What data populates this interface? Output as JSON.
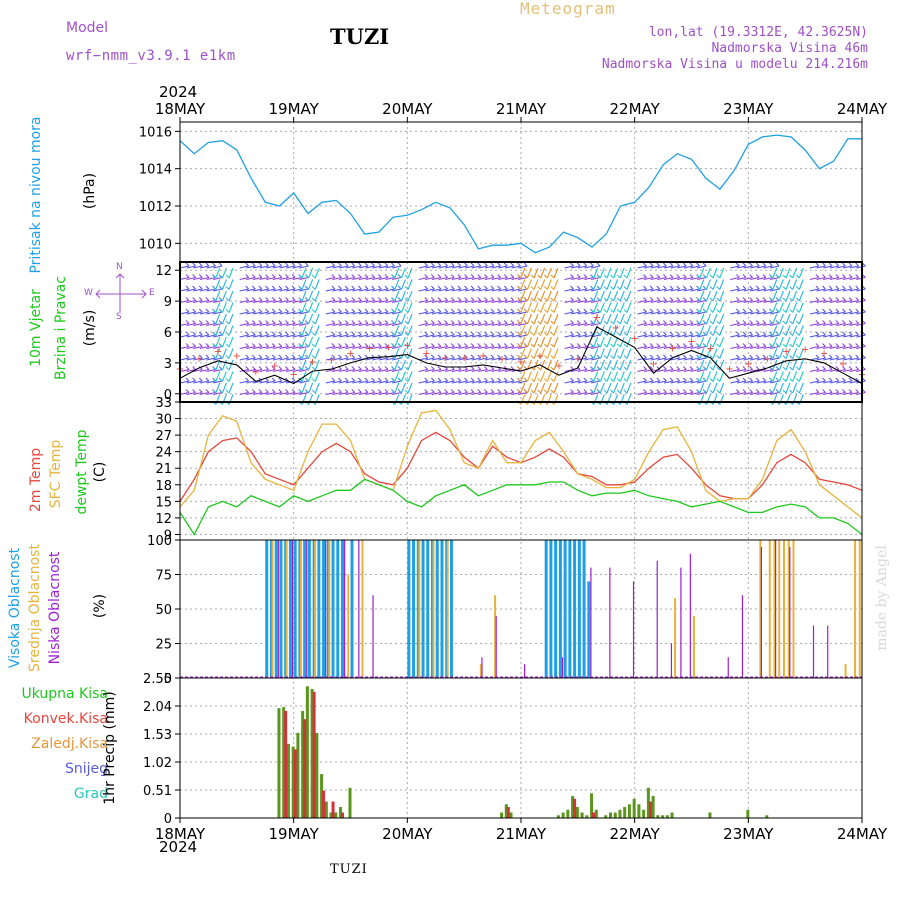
{
  "header": {
    "model_label": "Model",
    "model_name": "wrf−nmm_v3.9.1  e1km",
    "station": "TUZI",
    "title": "Meteogram",
    "lonlat": "lon,lat (19.3312E, 42.3625N)",
    "elevation": "Nadmorska Visina 46m",
    "model_elevation": "Nadmorska Visina u modelu 214.216m",
    "footer_station": "TUZI",
    "watermark": "made by Angel"
  },
  "time_axis": {
    "year": "2024",
    "ticks": [
      "18MAY",
      "19MAY",
      "20MAY",
      "21MAY",
      "22MAY",
      "23MAY",
      "24MAY"
    ],
    "range_hours": [
      0,
      144
    ]
  },
  "panel_labels": {
    "pressure": {
      "name": "Pritisak na nivou mora",
      "unit": "(hPa)"
    },
    "wind": {
      "name1": "10m Vjetar",
      "name2": "Brzina i Pravac",
      "unit": "(m/s)",
      "compass_n": "N",
      "compass_s": "S",
      "compass_w": "W",
      "compass_e": "E"
    },
    "temp": {
      "t2m": "2m Temp",
      "sfc": "SFC Temp",
      "dew": "dewpt Temp",
      "unit": "(C)"
    },
    "cloud": {
      "high": "Visoka Oblacnost",
      "mid": "Srednja Oblacnost",
      "low": "Niska Oblacnost",
      "unit": "(%)"
    },
    "precip": {
      "total": "Ukupna Kisa",
      "conv": "Konvek.Kisa",
      "frozen": "Zaledj.Kisa",
      "snow": "Snijeg",
      "hail": "Grad",
      "unit": "1hr Precip (mm)"
    }
  },
  "colors": {
    "pressure": "#1ea0e6",
    "t2m": "#e6463c",
    "sfc": "#e6b43c",
    "dew": "#1ec81e",
    "high": "#1ea0e6",
    "mid": "#e6b43c",
    "low": "#a01ed2",
    "precip_total": "#5a961e",
    "precip_conv": "#d2323c",
    "label_green": "#1ec81e",
    "label_red": "#e6463c",
    "label_orange": "#e6963c",
    "label_blue": "#5a5adc",
    "label_cyan": "#28c8b4",
    "purple": "#a050c8",
    "gold": "#e6be78"
  },
  "chart_data": [
    {
      "type": "line",
      "name": "pressure",
      "ylim": [
        1009,
        1016.5
      ],
      "yticks": [
        "1010",
        "1012",
        "1014",
        "1016"
      ],
      "x": [
        0,
        3,
        6,
        9,
        12,
        15,
        18,
        21,
        24,
        27,
        30,
        33,
        36,
        39,
        42,
        45,
        48,
        51,
        54,
        57,
        60,
        63,
        66,
        69,
        72,
        75,
        78,
        81,
        84,
        87,
        90,
        93,
        96,
        99,
        102,
        105,
        108,
        111,
        114,
        117,
        120,
        123,
        126,
        129,
        132,
        135,
        138,
        141,
        144
      ],
      "series": [
        {
          "values": [
            1015.5,
            1014.8,
            1015.4,
            1015.5,
            1015.0,
            1013.5,
            1012.2,
            1012.0,
            1012.7,
            1011.6,
            1012.2,
            1012.3,
            1011.6,
            1010.5,
            1010.6,
            1011.4,
            1011.5,
            1011.8,
            1012.2,
            1011.9,
            1011.0,
            1009.7,
            1009.9,
            1009.9,
            1010.0,
            1009.5,
            1009.8,
            1010.6,
            1010.3,
            1009.8,
            1010.5,
            1012.0,
            1012.2,
            1013.0,
            1014.2,
            1014.8,
            1014.5,
            1013.5,
            1012.9,
            1013.9,
            1015.3,
            1015.7,
            1015.8,
            1015.7,
            1015.0,
            1014.0,
            1014.4,
            1015.6,
            1015.6
          ]
        }
      ]
    },
    {
      "type": "line",
      "name": "wind",
      "ylim": [
        -0.8,
        12.8
      ],
      "yticks": [
        "0",
        "3",
        "6",
        "9",
        "12"
      ],
      "x": [
        0,
        4,
        8,
        12,
        16,
        20,
        24,
        28,
        32,
        36,
        40,
        44,
        48,
        52,
        56,
        60,
        64,
        68,
        72,
        76,
        80,
        84,
        88,
        92,
        96,
        100,
        104,
        108,
        112,
        116,
        120,
        124,
        128,
        132,
        136,
        140,
        144
      ],
      "series": [
        {
          "values": [
            1.5,
            2.5,
            3.2,
            2.8,
            1.2,
            1.8,
            1.0,
            2.2,
            2.4,
            3.0,
            3.5,
            3.6,
            3.8,
            3.0,
            2.6,
            2.6,
            2.8,
            2.5,
            2.2,
            2.8,
            1.8,
            2.5,
            6.5,
            5.5,
            4.5,
            2.0,
            3.5,
            4.2,
            3.5,
            1.5,
            2.0,
            2.5,
            3.2,
            3.4,
            3.0,
            2.0,
            1.0
          ]
        }
      ]
    },
    {
      "type": "line",
      "name": "temperature",
      "ylim": [
        8,
        33
      ],
      "yticks": [
        "9",
        "12",
        "15",
        "18",
        "21",
        "24",
        "27",
        "30",
        "33"
      ],
      "x": [
        0,
        3,
        6,
        9,
        12,
        15,
        18,
        21,
        24,
        27,
        30,
        33,
        36,
        39,
        42,
        45,
        48,
        51,
        54,
        57,
        60,
        63,
        66,
        69,
        72,
        75,
        78,
        81,
        84,
        87,
        90,
        93,
        96,
        99,
        102,
        105,
        108,
        111,
        114,
        117,
        120,
        123,
        126,
        129,
        132,
        135,
        138,
        141,
        144
      ],
      "series": [
        {
          "name": "2m Temp",
          "values": [
            15,
            19,
            24,
            26,
            26.5,
            24,
            20,
            19,
            18,
            21,
            24,
            25.5,
            24,
            20,
            18.5,
            18,
            21,
            26,
            27.5,
            26,
            23,
            21,
            25,
            23,
            22,
            23,
            24.5,
            23,
            20,
            19.5,
            18,
            18,
            18.5,
            21,
            23,
            23.5,
            21,
            18,
            16,
            15.5,
            15.5,
            18,
            22,
            23.5,
            22,
            19,
            18.5,
            18,
            17
          ]
        },
        {
          "name": "SFC Temp",
          "values": [
            14,
            17,
            27,
            30.5,
            29.5,
            22,
            19,
            18,
            17,
            24,
            29,
            29,
            26,
            19,
            18,
            17,
            25,
            31,
            31.5,
            28,
            22,
            21,
            26,
            22,
            22,
            26,
            27.5,
            24,
            20,
            19,
            17.5,
            17.5,
            19,
            24,
            28,
            28.5,
            24,
            17,
            15,
            15.5,
            15.5,
            19,
            26,
            28,
            24,
            18,
            16,
            14,
            12
          ]
        },
        {
          "name": "dewpt Temp",
          "values": [
            13,
            9,
            14,
            15,
            14,
            16,
            15,
            14,
            16,
            15,
            16,
            17,
            17,
            19,
            18,
            17,
            15,
            14,
            16,
            17,
            18,
            16,
            17,
            18,
            18,
            18,
            18.5,
            18.5,
            17,
            16,
            16.5,
            16.5,
            17,
            16,
            15.5,
            15,
            14,
            14.5,
            15,
            14,
            13,
            13,
            14,
            14.5,
            14,
            12,
            12,
            11,
            9
          ]
        }
      ]
    },
    {
      "type": "bar",
      "name": "cloud_cover",
      "ylim": [
        0,
        100
      ],
      "yticks": [
        "0",
        "25",
        "50",
        "75",
        "100"
      ],
      "series": [
        {
          "name": "Visoka Oblacnost",
          "x": [
            18,
            19,
            20,
            21,
            22,
            23,
            24,
            25,
            26,
            27,
            28,
            29,
            30,
            31,
            32,
            33,
            34,
            36,
            48,
            49,
            50,
            51,
            52,
            53,
            54,
            55,
            56,
            57,
            77,
            78,
            79,
            80,
            81,
            82,
            83,
            84,
            85,
            86
          ],
          "values": [
            100,
            100,
            100,
            100,
            100,
            100,
            100,
            100,
            100,
            100,
            100,
            100,
            100,
            100,
            100,
            100,
            100,
            100,
            100,
            100,
            100,
            100,
            100,
            100,
            100,
            100,
            100,
            100,
            100,
            100,
            100,
            100,
            100,
            100,
            100,
            100,
            100,
            70
          ]
        },
        {
          "name": "Srednja Oblacnost",
          "x": [
            19,
            22,
            25,
            28,
            31,
            35,
            38,
            50,
            53,
            56,
            63,
            66,
            104,
            108,
            122,
            124,
            125,
            126,
            127,
            128,
            129,
            140,
            142,
            143
          ],
          "values": [
            100,
            100,
            100,
            100,
            100,
            75,
            100,
            100,
            100,
            100,
            10,
            60,
            58,
            45,
            100,
            100,
            100,
            100,
            100,
            100,
            100,
            10,
            100,
            100
          ]
        },
        {
          "name": "Niska Oblacnost",
          "x": [
            20,
            23,
            26,
            30,
            34,
            37,
            40,
            63,
            66,
            72,
            80,
            86,
            90,
            95,
            100,
            103,
            105,
            107,
            115,
            118,
            122,
            125,
            128,
            133,
            136
          ],
          "values": [
            100,
            100,
            100,
            100,
            100,
            100,
            60,
            15,
            45,
            10,
            15,
            80,
            80,
            70,
            85,
            25,
            80,
            90,
            15,
            60,
            95,
            100,
            95,
            38,
            38
          ]
        }
      ]
    },
    {
      "type": "bar",
      "name": "precipitation",
      "ylim": [
        0,
        2.55
      ],
      "yticks": [
        "0",
        "0.51",
        "1.02",
        "1.53",
        "2.04",
        "2.55"
      ],
      "series": [
        {
          "name": "Ukupna Kisa",
          "x": [
            21,
            22,
            23,
            24,
            25,
            26,
            27,
            28,
            29,
            30,
            31,
            32,
            33,
            34,
            36,
            68,
            69,
            70,
            80,
            81,
            82,
            83,
            84,
            85,
            86,
            87,
            88,
            90,
            91,
            92,
            93,
            94,
            95,
            96,
            97,
            98,
            99,
            100,
            101,
            102,
            103,
            104,
            112,
            120,
            124
          ],
          "values": [
            2.0,
            2.02,
            1.35,
            1.3,
            1.55,
            1.95,
            2.4,
            2.35,
            1.55,
            0.8,
            0.3,
            0.1,
            0.1,
            0.2,
            0.55,
            0.1,
            0.25,
            0.1,
            0.05,
            0.1,
            0.15,
            0.4,
            0.2,
            0.1,
            0.05,
            0.45,
            0.15,
            0.05,
            0.1,
            0.1,
            0.15,
            0.2,
            0.25,
            0.35,
            0.25,
            0.15,
            0.55,
            0.4,
            0.05,
            0.05,
            0.05,
            0.1,
            0.1,
            0.15,
            0.05
          ]
        },
        {
          "name": "Konvek.Kisa",
          "x": [
            22,
            24,
            26,
            28,
            30,
            32,
            34,
            69,
            83,
            87,
            99
          ],
          "values": [
            1.95,
            1.25,
            1.8,
            2.3,
            0.5,
            0.3,
            0.1,
            0.2,
            0.35,
            0.1,
            0.3
          ]
        }
      ]
    }
  ]
}
